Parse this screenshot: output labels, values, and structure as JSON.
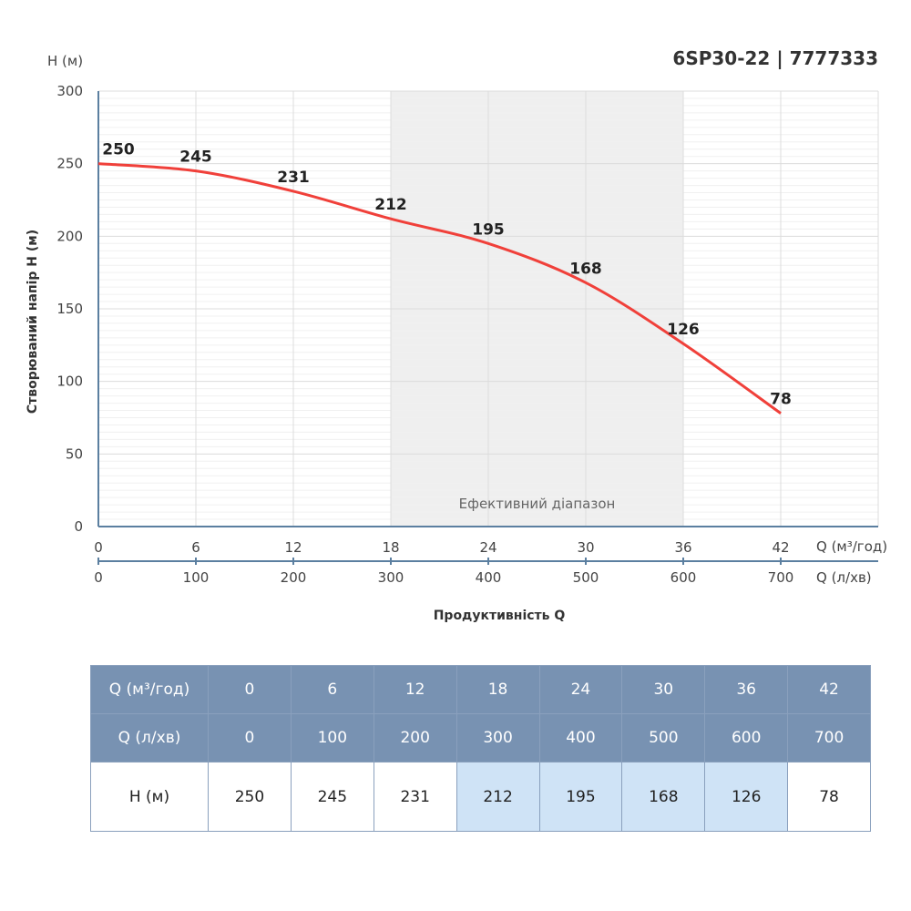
{
  "title": "6SP30-22 | 7777333",
  "chart_data": {
    "type": "line",
    "title": "6SP30-22 | 7777333",
    "ylabel": "Створюваний напір H (м)",
    "yunit": "H (м)",
    "xlabel": "Продуктивність Q",
    "x_unit_primary": "Q (м³/год)",
    "x_unit_secondary": "Q (л/хв)",
    "x": [
      0,
      6,
      12,
      18,
      24,
      30,
      36,
      42
    ],
    "x_secondary": [
      0,
      100,
      200,
      300,
      400,
      500,
      600,
      700
    ],
    "y": [
      250,
      245,
      231,
      212,
      195,
      168,
      126,
      78
    ],
    "yticks": [
      0,
      50,
      100,
      150,
      200,
      250,
      300
    ],
    "ylim": [
      0,
      300
    ],
    "xlim": [
      0,
      48
    ],
    "grid": true,
    "line_color": "#f0403a",
    "efficient_range": {
      "label": "Ефективний діапазон",
      "from": 18,
      "to": 36
    }
  },
  "table": {
    "row_labels": [
      "Q (м³/год)",
      "Q (л/хв)",
      "H (м)"
    ],
    "q_m3h": [
      "0",
      "6",
      "12",
      "18",
      "24",
      "30",
      "36",
      "42"
    ],
    "q_lmin": [
      "0",
      "100",
      "200",
      "300",
      "400",
      "500",
      "600",
      "700"
    ],
    "h": [
      "250",
      "245",
      "231",
      "212",
      "195",
      "168",
      "126",
      "78"
    ],
    "highlight": [
      false,
      false,
      false,
      true,
      true,
      true,
      true,
      false
    ]
  }
}
